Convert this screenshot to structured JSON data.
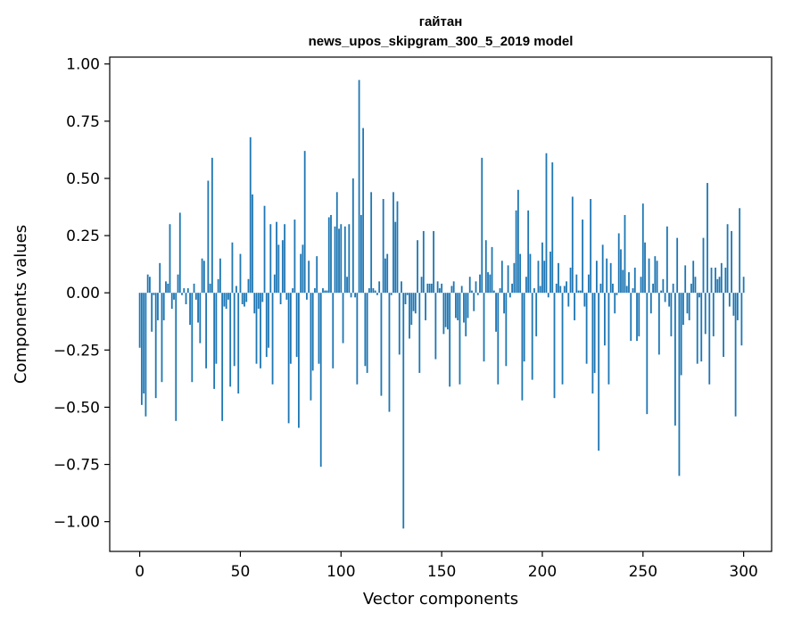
{
  "chart_data": {
    "type": "bar",
    "title": "гайтан",
    "subtitle": "news_upos_skipgram_300_5_2019 model",
    "xlabel": "Vector components",
    "ylabel": "Components values",
    "xlim": [
      -14.9,
      313.9
    ],
    "ylim": [
      -1.13,
      1.03
    ],
    "xticks": [
      0,
      50,
      100,
      150,
      200,
      250,
      300
    ],
    "yticks": [
      -1.0,
      -0.75,
      -0.5,
      -0.25,
      0.0,
      0.25,
      0.5,
      0.75,
      1.0
    ],
    "ytick_labels": [
      "−1.00",
      "−0.75",
      "−0.50",
      "−0.25",
      "0.00",
      "0.25",
      "0.50",
      "0.75",
      "1.00"
    ],
    "bar_color": "#1f77b4",
    "values": [
      -0.24,
      -0.49,
      -0.44,
      -0.54,
      0.08,
      0.07,
      -0.17,
      -0.01,
      -0.46,
      -0.12,
      0.13,
      -0.39,
      -0.12,
      0.05,
      0.04,
      0.3,
      -0.07,
      -0.03,
      -0.56,
      0.08,
      0.35,
      -0.01,
      0.02,
      -0.05,
      0.02,
      -0.14,
      -0.39,
      0.04,
      -0.03,
      -0.13,
      -0.22,
      0.15,
      0.14,
      -0.33,
      0.49,
      0.04,
      0.59,
      -0.42,
      -0.31,
      0.06,
      0.15,
      -0.56,
      -0.06,
      -0.07,
      -0.03,
      -0.41,
      0.22,
      -0.32,
      0.03,
      -0.44,
      0.17,
      -0.05,
      -0.06,
      -0.04,
      0.06,
      0.68,
      0.43,
      -0.09,
      -0.31,
      -0.07,
      -0.33,
      -0.04,
      0.38,
      -0.28,
      -0.24,
      0.3,
      -0.4,
      0.08,
      0.31,
      0.21,
      -0.05,
      0.23,
      0.3,
      -0.03,
      -0.57,
      -0.31,
      0.02,
      0.32,
      -0.28,
      -0.59,
      0.17,
      0.21,
      0.62,
      -0.03,
      0.14,
      -0.47,
      -0.34,
      0.02,
      0.16,
      -0.31,
      -0.76,
      0.02,
      0.01,
      0.01,
      0.33,
      0.34,
      -0.33,
      0.29,
      0.44,
      0.28,
      0.3,
      -0.22,
      0.29,
      0.07,
      0.3,
      -0.02,
      0.5,
      -0.02,
      -0.4,
      0.93,
      0.34,
      0.72,
      -0.32,
      -0.35,
      0.02,
      0.44,
      0.02,
      0.01,
      -0.01,
      0.05,
      -0.45,
      0.41,
      0.15,
      0.17,
      -0.52,
      -0.01,
      0.44,
      0.31,
      0.4,
      -0.27,
      0.05,
      -1.03,
      -0.05,
      -0.01,
      -0.2,
      -0.14,
      -0.08,
      -0.09,
      0.23,
      -0.35,
      0.07,
      0.27,
      -0.12,
      0.04,
      0.04,
      0.04,
      0.27,
      -0.29,
      0.05,
      0.02,
      0.04,
      -0.18,
      -0.15,
      -0.16,
      -0.41,
      0.03,
      0.05,
      -0.11,
      -0.12,
      -0.4,
      0.03,
      -0.13,
      -0.19,
      -0.11,
      0.07,
      0.01,
      -0.08,
      0.05,
      -0.01,
      0.08,
      0.59,
      -0.3,
      0.23,
      0.09,
      0.08,
      0.2,
      0.01,
      -0.17,
      -0.4,
      0.02,
      0.14,
      -0.09,
      -0.32,
      0.12,
      -0.02,
      0.04,
      0.13,
      0.36,
      0.45,
      0.17,
      -0.47,
      -0.3,
      0.07,
      0.36,
      0.17,
      -0.38,
      0.02,
      -0.19,
      0.14,
      0.03,
      0.22,
      0.14,
      0.61,
      -0.02,
      0.18,
      0.57,
      -0.46,
      0.04,
      0.13,
      0.03,
      -0.4,
      0.03,
      0.05,
      -0.06,
      0.11,
      0.42,
      -0.12,
      0.08,
      0.01,
      0.01,
      0.32,
      -0.06,
      -0.31,
      0.08,
      0.41,
      -0.44,
      -0.35,
      0.14,
      -0.69,
      0.04,
      0.21,
      -0.23,
      0.15,
      -0.4,
      0.13,
      0.04,
      -0.09,
      -0.01,
      0.26,
      0.19,
      0.1,
      0.34,
      0.03,
      0.09,
      -0.21,
      0.02,
      0.11,
      -0.21,
      -0.19,
      0.07,
      0.39,
      0.22,
      -0.53,
      0.15,
      -0.09,
      0.04,
      0.16,
      0.14,
      -0.27,
      0.01,
      0.06,
      -0.04,
      0.29,
      -0.06,
      -0.19,
      0.04,
      -0.58,
      0.24,
      -0.8,
      -0.36,
      -0.14,
      0.12,
      -0.09,
      -0.12,
      0.04,
      0.14,
      0.07,
      -0.31,
      -0.02,
      -0.3,
      0.24,
      -0.18,
      0.48,
      -0.4,
      0.11,
      -0.19,
      0.11,
      0.06,
      0.07,
      0.13,
      -0.28,
      0.11,
      0.3,
      -0.06,
      0.27,
      -0.1,
      -0.54,
      -0.12,
      0.37,
      -0.23,
      0.07
    ]
  }
}
